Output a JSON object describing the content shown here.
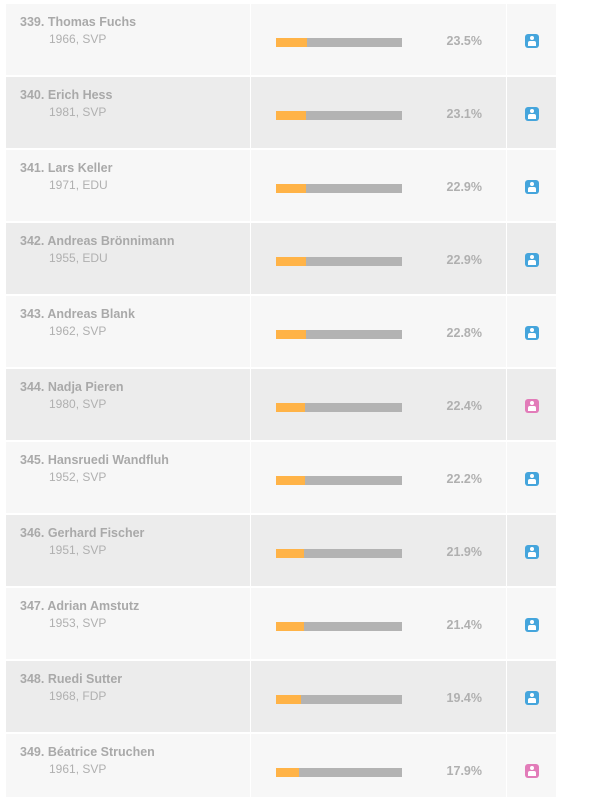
{
  "colors": {
    "bar_fill": "#ffb347",
    "bar_track": "#b3b3b3",
    "male_icon": "#45a5dc",
    "female_icon": "#e27cb9",
    "row_light": "#f7f7f7",
    "row_dark": "#ececec"
  },
  "rows": [
    {
      "rank": "339.",
      "name": "Thomas Fuchs",
      "meta": "1966, SVP",
      "percent": "23.5%",
      "value": 23.5,
      "gender_icon": "male-icon"
    },
    {
      "rank": "340.",
      "name": "Erich Hess",
      "meta": "1981, SVP",
      "percent": "23.1%",
      "value": 23.1,
      "gender_icon": "male-icon"
    },
    {
      "rank": "341.",
      "name": "Lars Keller",
      "meta": "1971, EDU",
      "percent": "22.9%",
      "value": 22.9,
      "gender_icon": "male-icon"
    },
    {
      "rank": "342.",
      "name": "Andreas Brönnimann",
      "meta": "1955, EDU",
      "percent": "22.9%",
      "value": 22.9,
      "gender_icon": "male-icon"
    },
    {
      "rank": "343.",
      "name": "Andreas Blank",
      "meta": "1962, SVP",
      "percent": "22.8%",
      "value": 22.8,
      "gender_icon": "male-icon"
    },
    {
      "rank": "344.",
      "name": "Nadja Pieren",
      "meta": "1980, SVP",
      "percent": "22.4%",
      "value": 22.4,
      "gender_icon": "female-icon"
    },
    {
      "rank": "345.",
      "name": "Hansruedi Wandfluh",
      "meta": "1952, SVP",
      "percent": "22.2%",
      "value": 22.2,
      "gender_icon": "male-icon"
    },
    {
      "rank": "346.",
      "name": "Gerhard Fischer",
      "meta": "1951, SVP",
      "percent": "21.9%",
      "value": 21.9,
      "gender_icon": "male-icon"
    },
    {
      "rank": "347.",
      "name": "Adrian Amstutz",
      "meta": "1953, SVP",
      "percent": "21.4%",
      "value": 21.4,
      "gender_icon": "male-icon"
    },
    {
      "rank": "348.",
      "name": "Ruedi Sutter",
      "meta": "1968, FDP",
      "percent": "19.4%",
      "value": 19.4,
      "gender_icon": "male-icon"
    },
    {
      "rank": "349.",
      "name": "Béatrice Struchen",
      "meta": "1961, SVP",
      "percent": "17.9%",
      "value": 17.9,
      "gender_icon": "female-icon"
    }
  ]
}
